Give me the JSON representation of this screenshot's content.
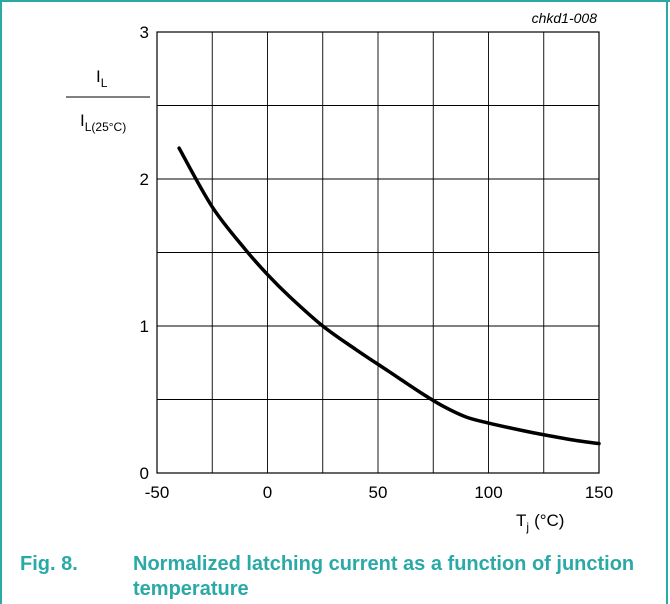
{
  "figure": {
    "number": "Fig. 8.",
    "caption": "Normalized latching current as a function of junction temperature",
    "code": "chkd1-008"
  },
  "chart_data": {
    "type": "line",
    "ylabel_numerator": "I",
    "ylabel_numerator_sub": "L",
    "ylabel_denominator": "I",
    "ylabel_denominator_sub": "L(25°C)",
    "xlabel": "T",
    "xlabel_sub": "j",
    "xlabel_unit": "(°C)",
    "xlim": [
      -50,
      150
    ],
    "ylim": [
      0,
      3
    ],
    "x_ticks": [
      -50,
      0,
      50,
      100,
      150
    ],
    "y_ticks": [
      0,
      1,
      2,
      3
    ],
    "x_grid_step": 25,
    "y_grid_step": 0.5,
    "grid": true,
    "series": [
      {
        "color": "#000000",
        "x": [
          -40,
          -25,
          -10,
          0,
          10,
          25,
          40,
          55,
          70,
          80,
          90,
          100,
          115,
          125,
          140,
          150
        ],
        "y": [
          2.21,
          1.81,
          1.52,
          1.35,
          1.2,
          1.0,
          0.84,
          0.69,
          0.54,
          0.45,
          0.38,
          0.34,
          0.29,
          0.26,
          0.22,
          0.2
        ]
      }
    ]
  }
}
